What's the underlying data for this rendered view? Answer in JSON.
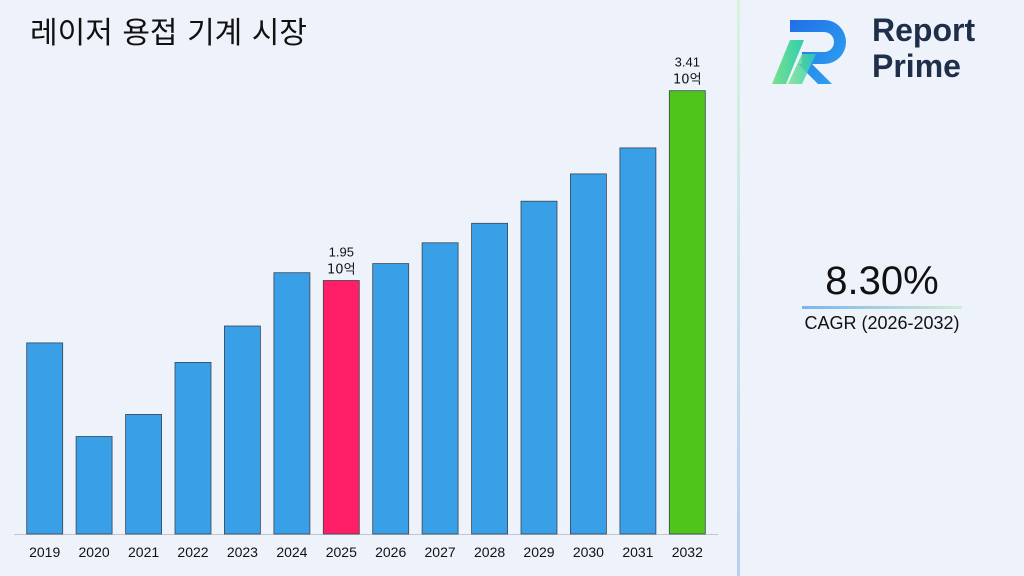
{
  "chart_data": {
    "type": "bar",
    "title": "레이저 용접 기계 시장",
    "categories": [
      "2019",
      "2020",
      "2021",
      "2022",
      "2023",
      "2024",
      "2025",
      "2026",
      "2027",
      "2028",
      "2029",
      "2030",
      "2031",
      "2032"
    ],
    "values": [
      1.47,
      0.75,
      0.92,
      1.32,
      1.6,
      2.01,
      1.95,
      2.08,
      2.24,
      2.39,
      2.56,
      2.77,
      2.97,
      3.41
    ],
    "ylim": [
      0,
      3.8
    ],
    "xlabel": "",
    "ylabel": "",
    "grid": false,
    "legend": "none",
    "colors": {
      "default": "#39a0e8",
      "highlight_base": "#ff1f68",
      "highlight_final": "#4fc51b"
    },
    "highlights": [
      {
        "category": "2025",
        "color": "highlight_base"
      },
      {
        "category": "2032",
        "color": "highlight_final"
      }
    ],
    "annotations": [
      {
        "category": "2025",
        "value_text": "1.95",
        "unit_text": "10억"
      },
      {
        "category": "2032",
        "value_text": "3.41",
        "unit_text": "10억"
      }
    ]
  },
  "logo": {
    "line1": "Report",
    "line2": "Prime",
    "colors": {
      "primary": "#1f6ee8",
      "secondary": "#34d1a3",
      "text": "#1f2f4a"
    }
  },
  "cagr": {
    "value": "8.30%",
    "label": "CAGR (2026-2032)"
  }
}
